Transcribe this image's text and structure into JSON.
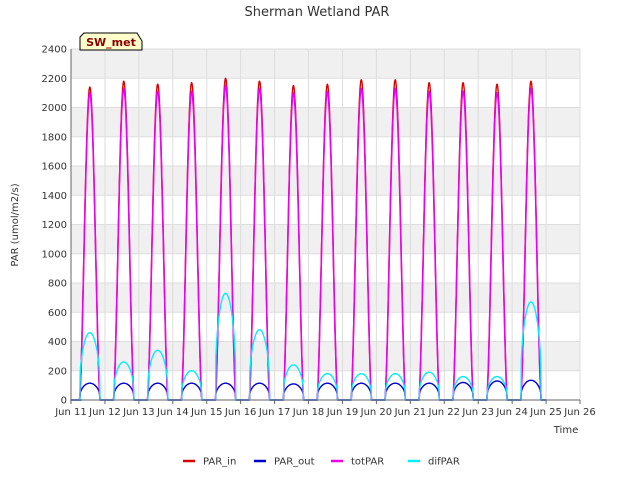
{
  "chart_data": {
    "type": "line",
    "title": "Sherman Wetland PAR",
    "badge": "SW_met",
    "xlabel": "Time",
    "ylabel": "PAR (umol/m2/s)",
    "xlim": [
      11,
      26
    ],
    "ylim": [
      0,
      2400
    ],
    "yticks": [
      0,
      200,
      400,
      600,
      800,
      1000,
      1200,
      1400,
      1600,
      1800,
      2000,
      2200,
      2400
    ],
    "xticks": [
      {
        "day": 11,
        "label": "Jun 11"
      },
      {
        "day": 12,
        "label": "Jun 12"
      },
      {
        "day": 13,
        "label": "Jun 13"
      },
      {
        "day": 14,
        "label": "Jun 14"
      },
      {
        "day": 15,
        "label": "Jun 15"
      },
      {
        "day": 16,
        "label": "Jun 16"
      },
      {
        "day": 17,
        "label": "Jun 17"
      },
      {
        "day": 18,
        "label": "Jun 18"
      },
      {
        "day": 19,
        "label": "Jun 19"
      },
      {
        "day": 20,
        "label": "Jun 20"
      },
      {
        "day": 21,
        "label": "Jun 21"
      },
      {
        "day": 22,
        "label": "Jun 22"
      },
      {
        "day": 23,
        "label": "Jun 23"
      },
      {
        "day": 24,
        "label": "Jun 24"
      },
      {
        "day": 25,
        "label": "Jun 25"
      },
      {
        "day": 26,
        "label": "Jun 26"
      }
    ],
    "grid": true,
    "legend_position": "bottom",
    "days": [
      "Jun 11",
      "Jun 12",
      "Jun 13",
      "Jun 14",
      "Jun 15",
      "Jun 16",
      "Jun 17",
      "Jun 18",
      "Jun 19",
      "Jun 20",
      "Jun 21",
      "Jun 22",
      "Jun 23",
      "Jun 24"
    ],
    "series": [
      {
        "name": "PAR_in",
        "color": "#dd0000",
        "daily_peak": [
          2140,
          2180,
          2160,
          2170,
          2200,
          2180,
          2150,
          2160,
          2190,
          2190,
          2170,
          2170,
          2160,
          2180
        ]
      },
      {
        "name": "PAR_out",
        "color": "#0000cc",
        "daily_peak": [
          115,
          115,
          115,
          115,
          115,
          115,
          110,
          115,
          115,
          115,
          115,
          120,
          130,
          135
        ]
      },
      {
        "name": "totPAR",
        "color": "#ee00ee",
        "daily_peak": [
          2100,
          2130,
          2110,
          2110,
          2150,
          2130,
          2100,
          2110,
          2130,
          2130,
          2110,
          2110,
          2100,
          2130
        ]
      },
      {
        "name": "difPAR",
        "color": "#00eeff",
        "daily_peak": [
          460,
          260,
          340,
          200,
          730,
          480,
          240,
          180,
          180,
          180,
          190,
          160,
          160,
          670
        ]
      }
    ]
  }
}
